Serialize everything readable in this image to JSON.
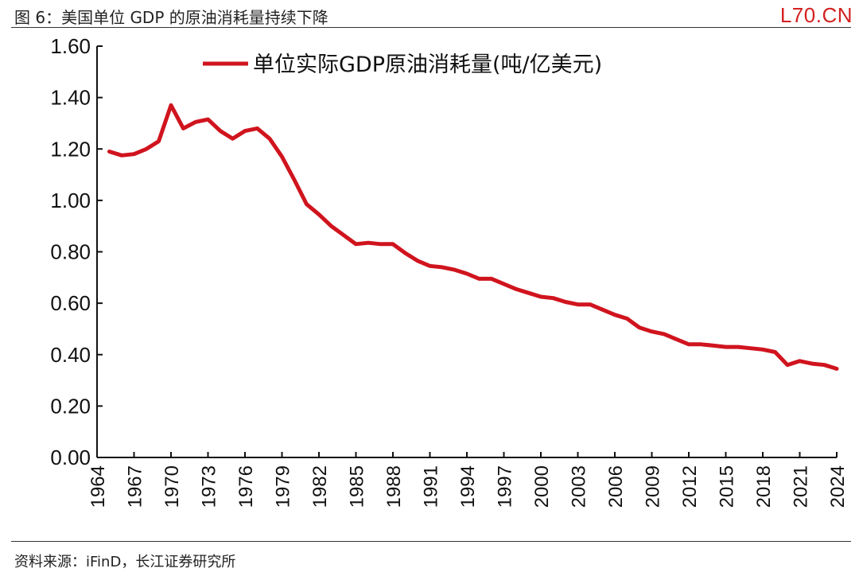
{
  "header": {
    "figure_title": "图 6：美国单位 GDP 的原油消耗量持续下降",
    "watermark": "L70.CN"
  },
  "footer": {
    "source": "资料来源：iFinD，长江证券研究所"
  },
  "colors": {
    "series": "#d0141e",
    "axis": "#111111",
    "watermark": "#d42020"
  },
  "chart_data": {
    "type": "line",
    "title": "图 6：美国单位 GDP 的原油消耗量持续下降",
    "xlabel": "",
    "ylabel": "",
    "ylim": [
      0,
      1.6
    ],
    "yticks": [
      "0.00",
      "0.20",
      "0.40",
      "0.60",
      "0.80",
      "1.00",
      "1.20",
      "1.40",
      "1.60"
    ],
    "xticks": [
      "1964",
      "1967",
      "1970",
      "1973",
      "1976",
      "1979",
      "1982",
      "1985",
      "1988",
      "1991",
      "1994",
      "1997",
      "2000",
      "2003",
      "2006",
      "2009",
      "2012",
      "2015",
      "2018",
      "2021",
      "2024"
    ],
    "legend_position": "top",
    "grid": false,
    "series": [
      {
        "name": "单位实际GDP原油消耗量(吨/亿美元)",
        "x": [
          1965,
          1966,
          1967,
          1968,
          1969,
          1970,
          1971,
          1972,
          1973,
          1974,
          1975,
          1976,
          1977,
          1978,
          1979,
          1980,
          1981,
          1982,
          1983,
          1984,
          1985,
          1986,
          1987,
          1988,
          1989,
          1990,
          1991,
          1992,
          1993,
          1994,
          1995,
          1996,
          1997,
          1998,
          1999,
          2000,
          2001,
          2002,
          2003,
          2004,
          2005,
          2006,
          2007,
          2008,
          2009,
          2010,
          2011,
          2012,
          2013,
          2014,
          2015,
          2016,
          2017,
          2018,
          2019,
          2020,
          2021,
          2022,
          2023,
          2024
        ],
        "values": [
          1.19,
          1.175,
          1.18,
          1.2,
          1.23,
          1.37,
          1.28,
          1.305,
          1.315,
          1.27,
          1.24,
          1.27,
          1.28,
          1.24,
          1.17,
          1.08,
          0.985,
          0.945,
          0.9,
          0.865,
          0.83,
          0.835,
          0.83,
          0.83,
          0.795,
          0.765,
          0.745,
          0.74,
          0.73,
          0.715,
          0.695,
          0.695,
          0.675,
          0.655,
          0.64,
          0.625,
          0.62,
          0.605,
          0.595,
          0.595,
          0.575,
          0.555,
          0.54,
          0.505,
          0.49,
          0.48,
          0.46,
          0.44,
          0.44,
          0.435,
          0.43,
          0.43,
          0.425,
          0.42,
          0.41,
          0.36,
          0.375,
          0.365,
          0.36,
          0.345
        ]
      }
    ]
  }
}
